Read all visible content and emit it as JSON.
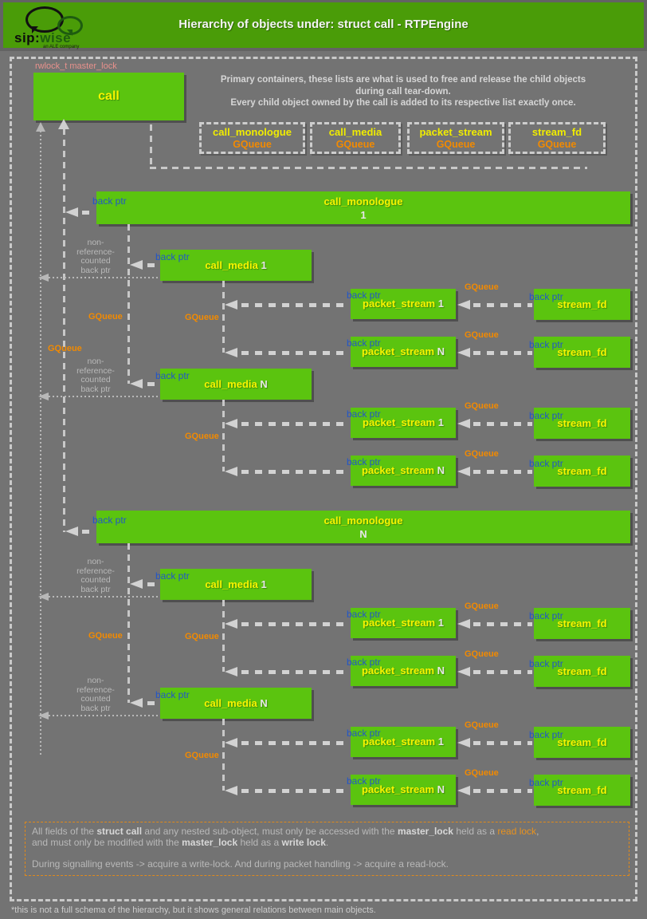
{
  "header": {
    "title": "Hierarchy of objects under: struct call - RTPEngine",
    "logo": {
      "sip": "sip:",
      "wise": "wise",
      "tagline": "an ALE company"
    }
  },
  "diagram": {
    "master_lock_label": "rwlock_t master_lock",
    "call_label": "call",
    "legend": {
      "line1": "Primary containers, these lists are what is used to free and release the child objects",
      "line2": "during call tear-down.",
      "line3": "Every child object owned by the call is added to its respective list exactly once.",
      "boxes": [
        {
          "name": "call_monologue",
          "type": "GQueue"
        },
        {
          "name": "call_media",
          "type": "GQueue"
        },
        {
          "name": "packet_stream",
          "type": "GQueue"
        },
        {
          "name": "stream_fd",
          "type": "GQueue"
        }
      ]
    },
    "labels": {
      "back_ptr": "back ptr",
      "gqueue": "GQueue",
      "non_ref_lines": [
        "non-",
        "reference-",
        "counted",
        "back ptr"
      ]
    },
    "monologues": [
      {
        "name": "call_monologue",
        "index": "1",
        "medias": [
          {
            "name": "call_media",
            "index": "1",
            "streams": [
              {
                "name": "packet_stream",
                "index": "1",
                "fd": "stream_fd"
              },
              {
                "name": "packet_stream",
                "index": "N",
                "fd": "stream_fd"
              }
            ]
          },
          {
            "name": "call_media",
            "index": "N",
            "streams": [
              {
                "name": "packet_stream",
                "index": "1",
                "fd": "stream_fd"
              },
              {
                "name": "packet_stream",
                "index": "N",
                "fd": "stream_fd"
              }
            ]
          }
        ]
      },
      {
        "name": "call_monologue",
        "index": "N",
        "medias": [
          {
            "name": "call_media",
            "index": "1",
            "streams": [
              {
                "name": "packet_stream",
                "index": "1",
                "fd": "stream_fd"
              },
              {
                "name": "packet_stream",
                "index": "N",
                "fd": "stream_fd"
              }
            ]
          },
          {
            "name": "call_media",
            "index": "N",
            "streams": [
              {
                "name": "packet_stream",
                "index": "1",
                "fd": "stream_fd"
              },
              {
                "name": "packet_stream",
                "index": "N",
                "fd": "stream_fd"
              }
            ]
          }
        ]
      }
    ],
    "colors": {
      "header_green": "#4a9c08",
      "box_green": "#5bc40f",
      "label_yellow": "#f8f400",
      "label_orange": "#f28a00",
      "back_ptr_blue": "#2156c8",
      "lock_salmon": "#e8918c"
    }
  },
  "note": {
    "l1a": "All fields of the ",
    "l1b": "struct call",
    "l1c": " and any nested sub-object, must only be accessed with the ",
    "l1d": "master_lock",
    "l1e": " held as a ",
    "l1f": "read lock",
    "l1g": ",",
    "l2a": "and must only be modified with the ",
    "l2b": "master_lock",
    "l2c": " held as a ",
    "l2d": "write lock",
    "l2e": ".",
    "l3": "During signalling events -> acquire a write-lock. And during packet handling -> acquire a read-lock."
  },
  "footnote": "*this is not a full schema of the hierarchy, but it shows general relations between main objects."
}
